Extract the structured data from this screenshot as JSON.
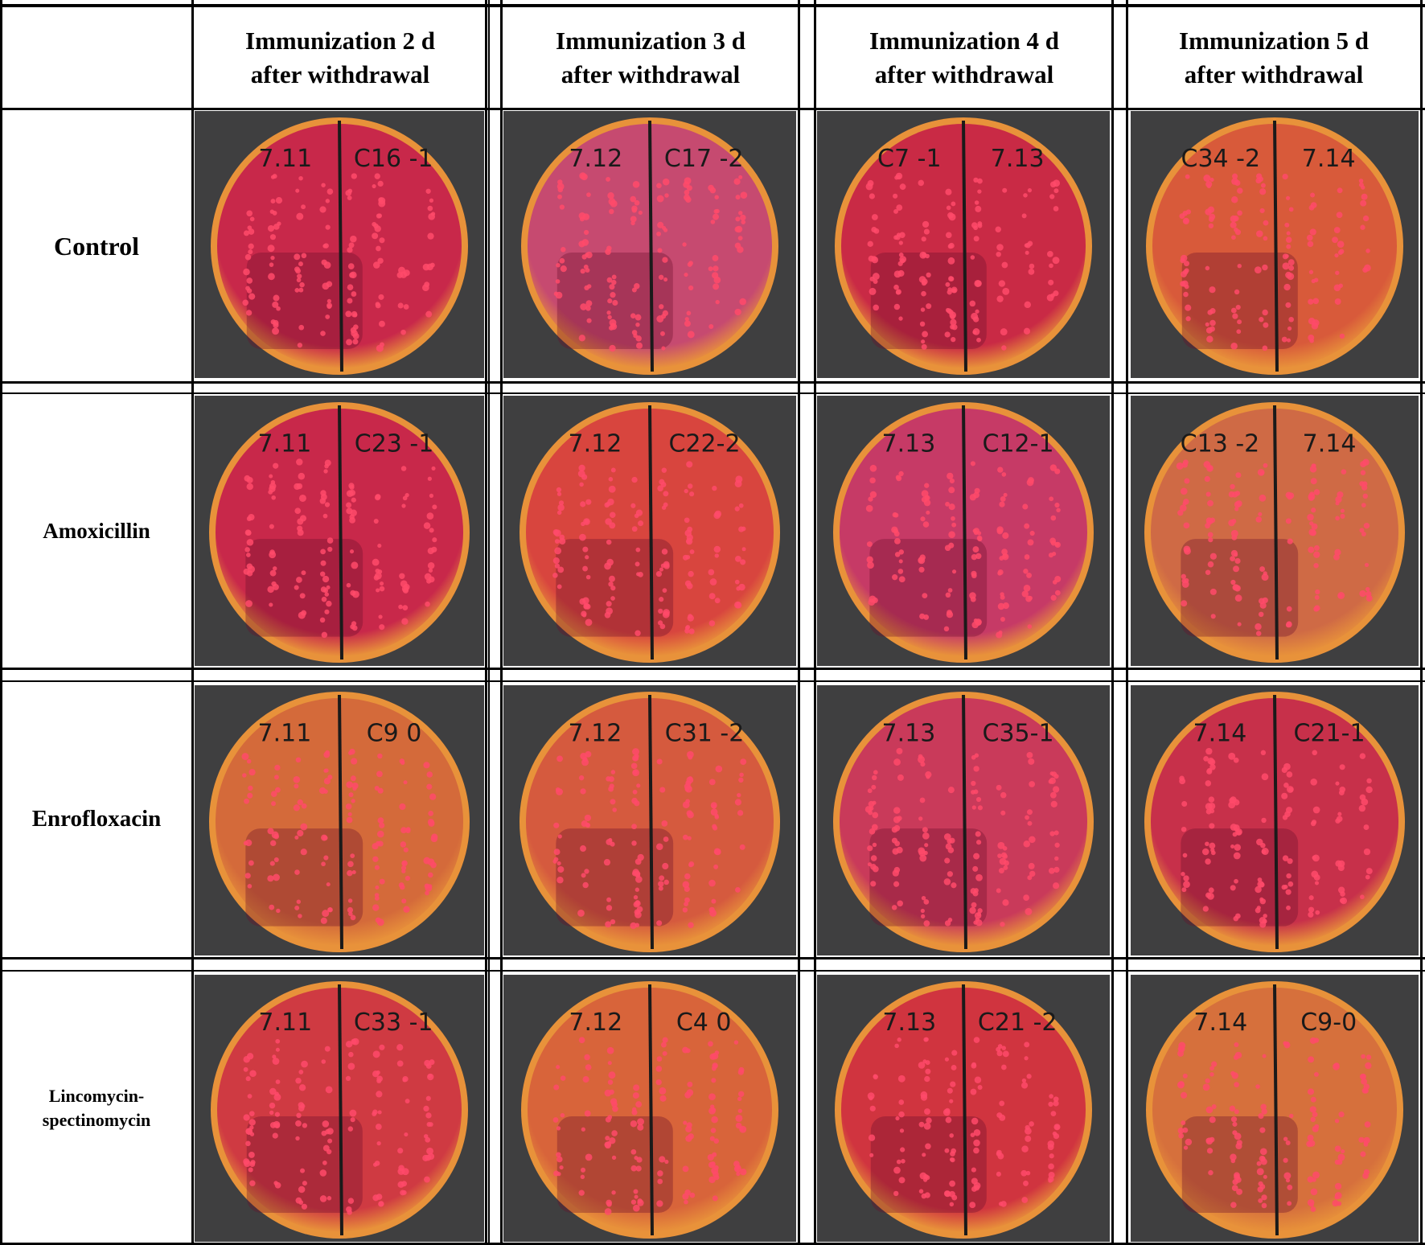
{
  "columns": [
    {
      "line1": "Immunization 2 d",
      "line2": "after withdrawal"
    },
    {
      "line1": "Immunization 3 d",
      "line2": "after withdrawal"
    },
    {
      "line1": "Immunization 4 d",
      "line2": "after withdrawal"
    },
    {
      "line1": "Immunization 5 d",
      "line2": "after withdrawal"
    }
  ],
  "rows": [
    {
      "label": "Control"
    },
    {
      "label": "Amoxicillin"
    },
    {
      "label": "Enrofloxacin"
    },
    {
      "label": "Lincomycin-spectinomycin",
      "line1": "Lincomycin-",
      "line2": "spectinomycin"
    }
  ],
  "plates": [
    [
      {
        "left": "7.11",
        "right": "C16 -1",
        "tint": "#c8284a"
      },
      {
        "left": "7.12",
        "right": "C17 -2",
        "tint": "#c64a70"
      },
      {
        "left": "C7 -1",
        "right": "7.13",
        "tint": "#c92a45"
      },
      {
        "left": "C34 -2",
        "right": "7.14",
        "tint": "#d85a3a"
      }
    ],
    [
      {
        "left": "7.11",
        "right": "C23 -1",
        "tint": "#c8284a"
      },
      {
        "left": "7.12",
        "right": "C22-2",
        "tint": "#d8453e"
      },
      {
        "left": "7.13",
        "right": "C12-1",
        "tint": "#c63a66"
      },
      {
        "left": "C13 -2",
        "right": "7.14",
        "tint": "#cf6a45"
      }
    ],
    [
      {
        "left": "7.11",
        "right": "C9 0",
        "tint": "#d46a3a"
      },
      {
        "left": "7.12",
        "right": "C31 -2",
        "tint": "#d55a3e"
      },
      {
        "left": "7.13",
        "right": "C35-1",
        "tint": "#c93a5a"
      },
      {
        "left": "7.14",
        "right": "C21-1",
        "tint": "#c7304a"
      }
    ],
    [
      {
        "left": "7.11",
        "right": "C33 -1",
        "tint": "#cf3a42"
      },
      {
        "left": "7.12",
        "right": "C4 0",
        "tint": "#d8643a"
      },
      {
        "left": "7.13",
        "right": "C21 -2",
        "tint": "#d0343f"
      },
      {
        "left": "7.14",
        "right": "C9-0",
        "tint": "#d6703c"
      }
    ]
  ],
  "colors": {
    "agar_rim": "#e8923a",
    "bench": "#3f3f40",
    "ink": "#1a1a1a"
  }
}
